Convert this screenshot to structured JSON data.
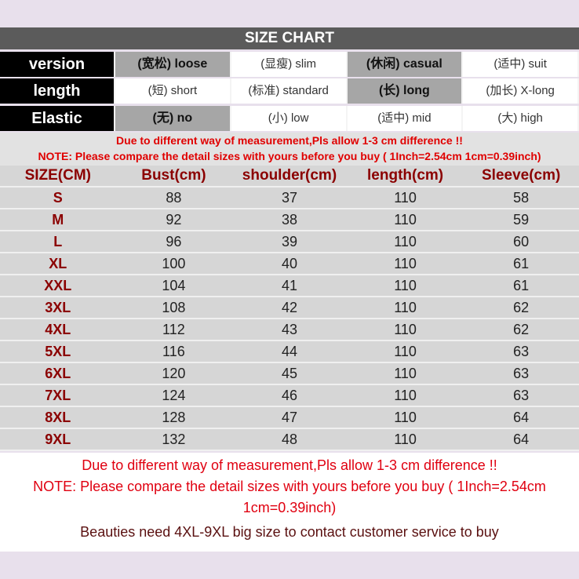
{
  "title": "SIZE CHART",
  "attributes": [
    {
      "label": "version",
      "options": [
        {
          "text": "(宽松) loose",
          "selected": true
        },
        {
          "text": "(显瘦) slim",
          "selected": false
        },
        {
          "text": "(休闲) casual",
          "selected": true
        },
        {
          "text": "(适中) suit",
          "selected": false
        }
      ]
    },
    {
      "label": "length",
      "options": [
        {
          "text": "(短) short",
          "selected": false
        },
        {
          "text": "(标准) standard",
          "selected": false
        },
        {
          "text": "(长) long",
          "selected": true
        },
        {
          "text": "(加长) X-long",
          "selected": false
        }
      ]
    },
    {
      "label": "Elastic",
      "options": [
        {
          "text": "(无) no",
          "selected": true
        },
        {
          "text": "(小) low",
          "selected": false
        },
        {
          "text": "(适中) mid",
          "selected": false
        },
        {
          "text": "(大) high",
          "selected": false
        }
      ]
    }
  ],
  "notes": {
    "line1": "Due to different way of measurement,Pls allow 1-3 cm difference !!",
    "line2": "NOTE: Please compare the detail sizes with yours before you buy ( 1Inch=2.54cm 1cm=0.39inch)"
  },
  "table": {
    "headers": [
      "SIZE(CM)",
      "Bust(cm)",
      "shoulder(cm)",
      "length(cm)",
      "Sleeve(cm)"
    ],
    "rows": [
      [
        "S",
        "88",
        "37",
        "110",
        "58"
      ],
      [
        "M",
        "92",
        "38",
        "110",
        "59"
      ],
      [
        "L",
        "96",
        "39",
        "110",
        "60"
      ],
      [
        "XL",
        "100",
        "40",
        "110",
        "61"
      ],
      [
        "XXL",
        "104",
        "41",
        "110",
        "61"
      ],
      [
        "3XL",
        "108",
        "42",
        "110",
        "62"
      ],
      [
        "4XL",
        "112",
        "43",
        "110",
        "62"
      ],
      [
        "5XL",
        "116",
        "44",
        "110",
        "63"
      ],
      [
        "6XL",
        "120",
        "45",
        "110",
        "63"
      ],
      [
        "7XL",
        "124",
        "46",
        "110",
        "63"
      ],
      [
        "8XL",
        "128",
        "47",
        "110",
        "64"
      ],
      [
        "9XL",
        "132",
        "48",
        "110",
        "64"
      ]
    ]
  },
  "footer": {
    "line1": "Due to different way of measurement,Pls allow 1-3 cm difference !!",
    "line2": "NOTE: Please compare the detail sizes with yours before you buy ( 1Inch=2.54cm 1cm=0.39inch)",
    "line3": "Beauties need 4XL-9XL big size to contact customer service to buy"
  }
}
